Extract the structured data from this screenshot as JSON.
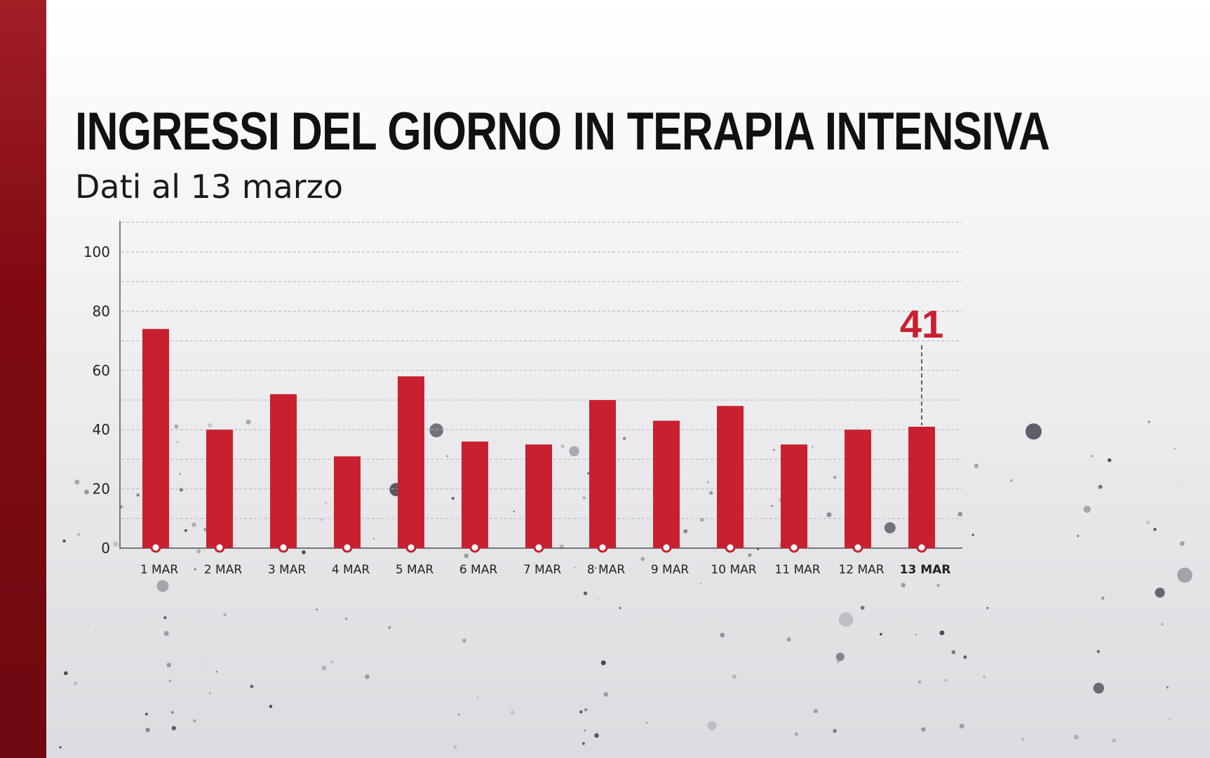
{
  "title": "INGRESSI DEL GIORNO IN TERAPIA INTENSIVA",
  "subtitle": "Dati al 13 marzo",
  "colors": {
    "bar": "#c8202f",
    "sidebar": "#8a0d15",
    "callout": "#c8202f",
    "marker_fill": "#ffffff"
  },
  "chart_data": {
    "type": "bar",
    "title": "INGRESSI DEL GIORNO IN TERAPIA INTENSIVA",
    "subtitle": "Dati al 13 marzo",
    "categories": [
      "1 MAR",
      "2 MAR",
      "3 MAR",
      "4 MAR",
      "5 MAR",
      "6 MAR",
      "7 MAR",
      "8 MAR",
      "9 MAR",
      "10 MAR",
      "11 MAR",
      "12 MAR",
      "13 MAR"
    ],
    "values": [
      74,
      40,
      52,
      31,
      58,
      36,
      35,
      50,
      43,
      48,
      35,
      40,
      41
    ],
    "ylim": [
      0,
      110
    ],
    "yticks": [
      0,
      20,
      40,
      60,
      80,
      100
    ],
    "xlabel": "",
    "ylabel": "",
    "grid": true,
    "highlight": {
      "category": "13 MAR",
      "label": "41"
    }
  }
}
